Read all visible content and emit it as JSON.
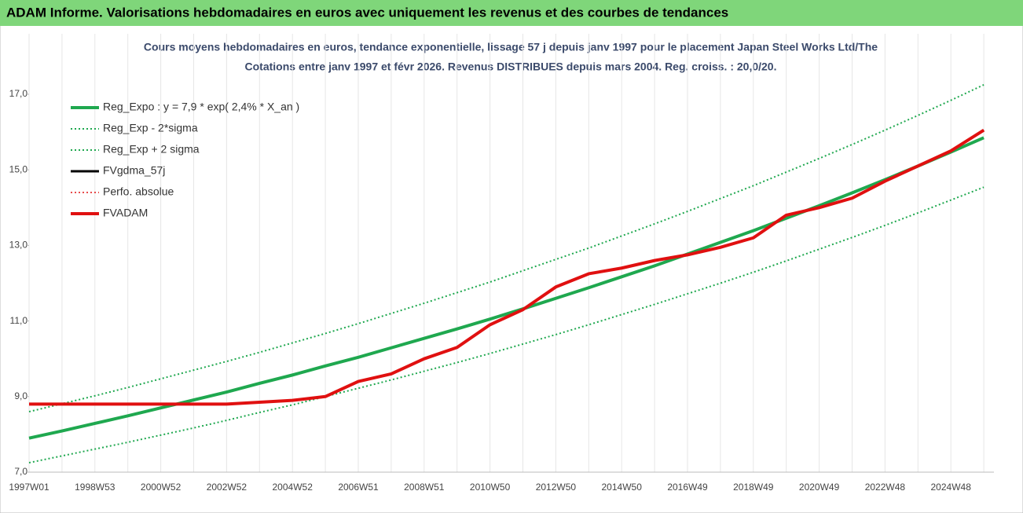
{
  "chart_data": {
    "type": "line",
    "title": "ADAM Informe. Valorisations hebdomadaires en euros avec uniquement les revenus et des courbes de tendances",
    "subtitle": [
      "Cours moyens hebdomadaires en euros, tendance exponentielle, lissage 57 j depuis janv 1997 pour le placement Japan Steel Works Ltd/The",
      "Cotations entre janv 1997 et févr 2026. Revenus DISTRIBUES depuis mars 2004. Reg. croiss. : 20,0/20."
    ],
    "x": [
      "1997W01",
      null,
      "1998W53",
      null,
      "2000W52",
      null,
      "2002W52",
      null,
      "2004W52",
      null,
      "2006W51",
      null,
      "2008W51",
      null,
      "2010W50",
      null,
      "2012W50",
      null,
      "2014W50",
      null,
      "2016W49",
      null,
      "2018W49",
      null,
      "2020W49",
      null,
      "2022W48",
      null,
      "2024W48",
      null
    ],
    "ylim": [
      7,
      18.6
    ],
    "yticks": [
      {
        "value": 7,
        "label": "7,0"
      },
      {
        "value": 9,
        "label": "9,0"
      },
      {
        "value": 11,
        "label": "11,0"
      },
      {
        "value": 13,
        "label": "13,0"
      },
      {
        "value": 15,
        "label": "15,0"
      },
      {
        "value": 17,
        "label": "17,0"
      }
    ],
    "grid": true,
    "legend": "upper left",
    "series": [
      {
        "name": "Reg_Expo : y = 7,9 * exp( 2,4% *  X_an )",
        "color": "#1fa84f",
        "width": 4,
        "dash": false,
        "values": [
          7.9,
          8.09,
          8.29,
          8.49,
          8.7,
          8.91,
          9.12,
          9.35,
          9.57,
          9.81,
          10.04,
          10.29,
          10.54,
          10.79,
          11.05,
          11.32,
          11.6,
          11.88,
          12.17,
          12.46,
          12.77,
          13.08,
          13.39,
          13.72,
          14.05,
          14.39,
          14.74,
          15.1,
          15.47,
          15.85
        ]
      },
      {
        "name": "Reg_Exp - 2*sigma",
        "color": "#1fa84f",
        "width": 2,
        "dash": true,
        "values": [
          7.25,
          7.43,
          7.61,
          7.79,
          7.98,
          8.17,
          8.37,
          8.58,
          8.78,
          9.0,
          9.22,
          9.44,
          9.67,
          9.9,
          10.14,
          10.39,
          10.64,
          10.9,
          11.17,
          11.44,
          11.72,
          12.0,
          12.29,
          12.59,
          12.9,
          13.21,
          13.53,
          13.86,
          14.2,
          14.54
        ]
      },
      {
        "name": "Reg_Exp + 2 sigma",
        "color": "#1fa84f",
        "width": 2,
        "dash": true,
        "values": [
          8.6,
          8.81,
          9.02,
          9.24,
          9.47,
          9.7,
          9.93,
          10.17,
          10.42,
          10.67,
          10.93,
          11.2,
          11.47,
          11.75,
          12.03,
          12.33,
          12.63,
          12.93,
          13.25,
          13.57,
          13.9,
          14.24,
          14.58,
          14.94,
          15.3,
          15.67,
          16.05,
          16.44,
          16.84,
          17.25
        ]
      },
      {
        "name": "FVgdma_57j",
        "color": "#000000",
        "width": 3,
        "dash": false,
        "values": [
          8.8,
          8.8,
          8.8,
          8.8,
          8.8,
          8.8,
          8.8,
          8.85,
          8.9,
          9.0,
          9.4,
          9.6,
          10.0,
          10.3,
          10.9,
          11.3,
          11.9,
          12.25,
          12.4,
          12.6,
          12.75,
          12.95,
          13.2,
          13.8,
          14.0,
          14.25,
          14.7,
          15.1,
          15.5,
          16.05
        ]
      },
      {
        "name": "Perfo. absolue",
        "color": "#e01010",
        "width": 1.5,
        "dash": true,
        "values": [
          8.8,
          8.8,
          8.8,
          8.8,
          8.8,
          8.8,
          8.8,
          8.85,
          8.9,
          9.0,
          9.4,
          9.6,
          10.0,
          10.3,
          10.9,
          11.3,
          11.9,
          12.25,
          12.4,
          12.6,
          12.75,
          12.95,
          13.2,
          13.8,
          14.0,
          14.25,
          14.7,
          15.1,
          15.5,
          16.05
        ]
      },
      {
        "name": "FVADAM",
        "color": "#e01010",
        "width": 4,
        "dash": false,
        "values": [
          8.8,
          8.8,
          8.8,
          8.8,
          8.8,
          8.8,
          8.8,
          8.85,
          8.9,
          9.0,
          9.4,
          9.6,
          10.0,
          10.3,
          10.9,
          11.3,
          11.9,
          12.25,
          12.4,
          12.6,
          12.75,
          12.95,
          13.2,
          13.8,
          14.0,
          14.25,
          14.7,
          15.1,
          15.5,
          16.05
        ]
      }
    ]
  }
}
